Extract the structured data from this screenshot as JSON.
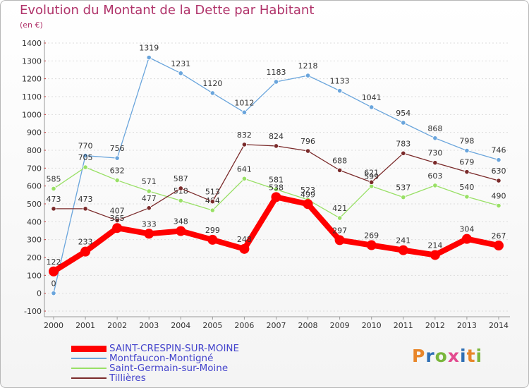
{
  "title": "Evolution du Montant de la Dette par Habitant",
  "subtitle": "(en €)",
  "logo": {
    "text": "Proxiti",
    "letter_colors": [
      "#e8862a",
      "#2f6fb5",
      "#7ab63c",
      "#e34b8f",
      "#2f6fb5",
      "#e8862a",
      "#7ab63c"
    ]
  },
  "chart_data": {
    "type": "line",
    "title": "Evolution du Montant de la Dette par Habitant",
    "ylabel": "(en €)",
    "xlabel": "",
    "x": [
      "2000",
      "2001",
      "2002",
      "2003",
      "2004",
      "2005",
      "2006",
      "2007",
      "2008",
      "2009",
      "2010",
      "2011",
      "2012",
      "2013",
      "2014"
    ],
    "ylim": [
      -100,
      1400
    ],
    "yticks": [
      -100,
      0,
      100,
      200,
      300,
      400,
      500,
      600,
      700,
      800,
      900,
      1000,
      1100,
      1200,
      1300,
      1400
    ],
    "grid": "horizontal",
    "legend_position": "bottom-left",
    "series": [
      {
        "name": "SAINT-CRESPIN-SUR-MOINE",
        "color": "#ff0000",
        "values": [
          122,
          233,
          365,
          333,
          348,
          299,
          248,
          538,
          499,
          297,
          269,
          241,
          214,
          304,
          267
        ]
      },
      {
        "name": "Montfaucon-Montigné",
        "color": "#6aa5dc",
        "values": [
          0,
          770,
          756,
          1319,
          1231,
          1120,
          1012,
          1183,
          1218,
          1133,
          1041,
          954,
          868,
          798,
          746
        ]
      },
      {
        "name": "Saint-Germain-sur-Moine",
        "color": "#99e066",
        "values": [
          585,
          705,
          632,
          571,
          518,
          464,
          641,
          581,
          523,
          421,
          599,
          537,
          603,
          540,
          490
        ]
      },
      {
        "name": "Tillières",
        "color": "#7a2a2a",
        "values": [
          473,
          473,
          407,
          477,
          587,
          513,
          832,
          824,
          796,
          688,
          621,
          783,
          730,
          679,
          630
        ]
      }
    ]
  }
}
